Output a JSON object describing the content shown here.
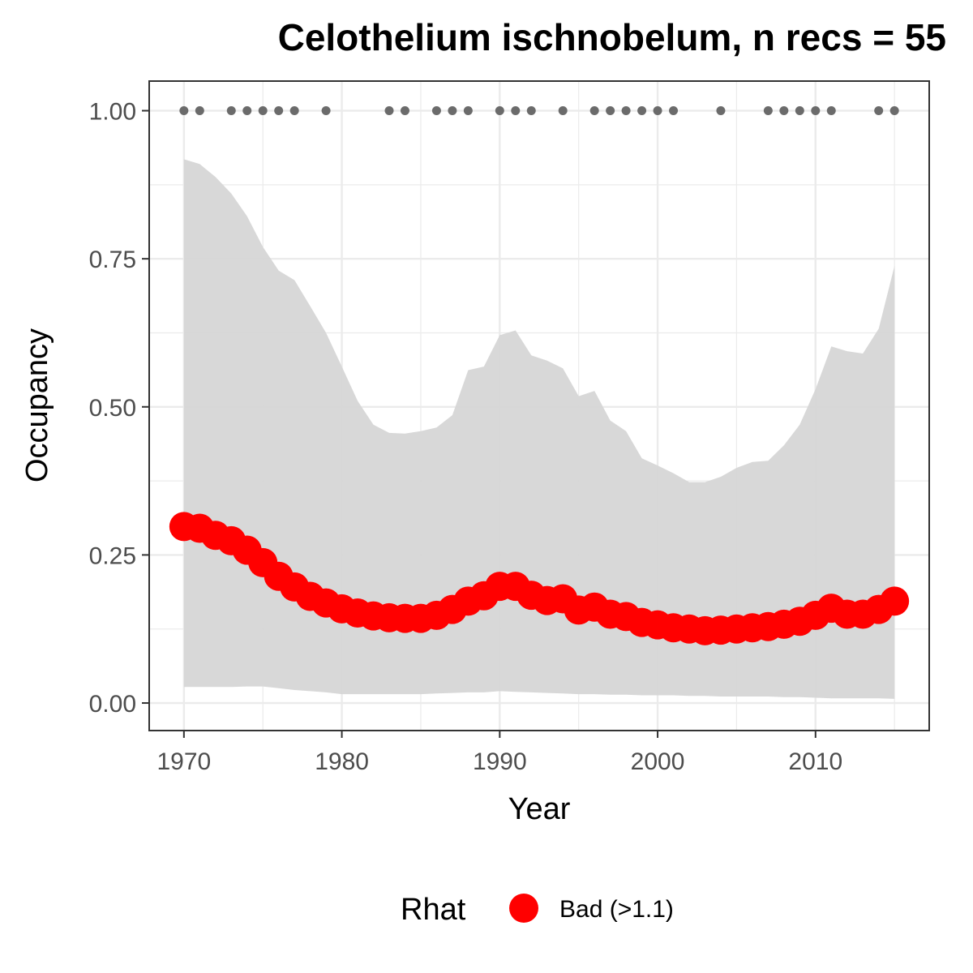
{
  "chart_data": {
    "type": "line",
    "title": "Celothelium ischnobelum, n recs = 55",
    "xlabel": "Year",
    "ylabel": "Occupancy",
    "xlim": [
      1967.8,
      2017.2
    ],
    "ylim": [
      -0.0465,
      1.05
    ],
    "xticks": [
      1970,
      1980,
      1990,
      2000,
      2010
    ],
    "xtick_labels": [
      "1970",
      "1980",
      "1990",
      "2000",
      "2010"
    ],
    "yticks": [
      0,
      0.25,
      0.5,
      0.75,
      1.0
    ],
    "ytick_labels": [
      "0.00",
      "0.25",
      "0.50",
      "0.75",
      "1.00"
    ],
    "grid": true,
    "legend": {
      "title": "Rhat",
      "position": "bottom",
      "entries": [
        {
          "label": "Bad (>1.1)",
          "color": "#ff0000"
        }
      ]
    },
    "colors": {
      "points": "#ff0000",
      "ribbon": "#d6d6d6",
      "records": "#6b6b6b",
      "panel_border": "#333333",
      "grid": "#ebebeb"
    },
    "years": [
      1970,
      1971,
      1972,
      1973,
      1974,
      1975,
      1976,
      1977,
      1978,
      1979,
      1980,
      1981,
      1982,
      1983,
      1984,
      1985,
      1986,
      1987,
      1988,
      1989,
      1990,
      1991,
      1992,
      1993,
      1994,
      1995,
      1996,
      1997,
      1998,
      1999,
      2000,
      2001,
      2002,
      2003,
      2004,
      2005,
      2006,
      2007,
      2008,
      2009,
      2010,
      2011,
      2012,
      2013,
      2014,
      2015
    ],
    "occupancy": [
      0.298,
      0.295,
      0.283,
      0.274,
      0.258,
      0.237,
      0.214,
      0.196,
      0.18,
      0.169,
      0.159,
      0.152,
      0.147,
      0.144,
      0.143,
      0.143,
      0.148,
      0.158,
      0.172,
      0.181,
      0.197,
      0.197,
      0.182,
      0.173,
      0.176,
      0.157,
      0.162,
      0.15,
      0.146,
      0.136,
      0.132,
      0.127,
      0.125,
      0.122,
      0.123,
      0.125,
      0.127,
      0.129,
      0.133,
      0.138,
      0.148,
      0.16,
      0.15,
      0.15,
      0.158,
      0.172
    ],
    "upper": [
      0.918,
      0.91,
      0.888,
      0.86,
      0.822,
      0.77,
      0.73,
      0.714,
      0.67,
      0.625,
      0.568,
      0.51,
      0.47,
      0.456,
      0.455,
      0.459,
      0.465,
      0.486,
      0.562,
      0.568,
      0.621,
      0.629,
      0.587,
      0.578,
      0.565,
      0.518,
      0.527,
      0.477,
      0.459,
      0.413,
      0.401,
      0.388,
      0.373,
      0.373,
      0.382,
      0.397,
      0.407,
      0.409,
      0.435,
      0.47,
      0.53,
      0.602,
      0.594,
      0.59,
      0.632,
      0.738
    ],
    "lower": [
      0.027,
      0.027,
      0.027,
      0.027,
      0.028,
      0.028,
      0.025,
      0.022,
      0.02,
      0.018,
      0.015,
      0.015,
      0.015,
      0.015,
      0.015,
      0.015,
      0.016,
      0.017,
      0.018,
      0.018,
      0.02,
      0.019,
      0.018,
      0.017,
      0.016,
      0.015,
      0.015,
      0.014,
      0.014,
      0.013,
      0.013,
      0.013,
      0.012,
      0.012,
      0.011,
      0.011,
      0.011,
      0.011,
      0.01,
      0.01,
      0.009,
      0.008,
      0.008,
      0.008,
      0.008,
      0.007
    ],
    "record_years": [
      1970,
      1971,
      1973,
      1974,
      1975,
      1976,
      1977,
      1979,
      1983,
      1984,
      1986,
      1987,
      1988,
      1990,
      1991,
      1992,
      1994,
      1996,
      1997,
      1998,
      1999,
      2000,
      2001,
      2004,
      2007,
      2008,
      2009,
      2010,
      2011,
      2014,
      2015
    ],
    "record_value": 1.0
  }
}
